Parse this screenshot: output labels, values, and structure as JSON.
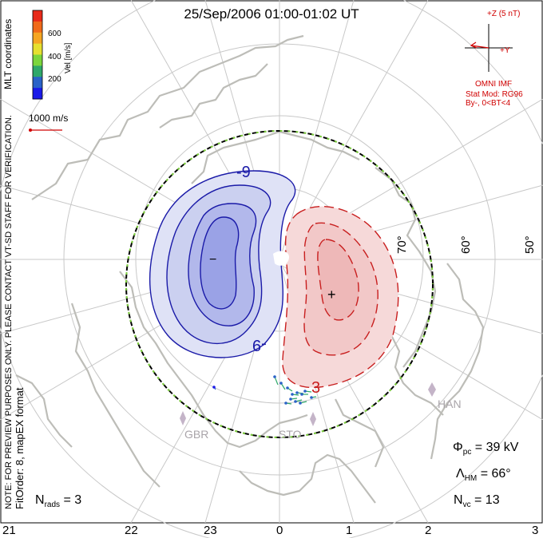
{
  "title": "25/Sep/2006 01:00-01:02 UT",
  "left_margin": {
    "coords": "MLT coordinates",
    "preview_note": "NOTE: FOR PREVIEW PURPOSES ONLY. PLEASE CONTACT VT-SD STAFF FOR VERIFICATION.",
    "fit_info": "FitOrder: 8,  mapEX format"
  },
  "colorbar": {
    "label": "Vel [m/s]",
    "ticks": [
      "600",
      "400",
      "200"
    ],
    "colors": [
      "#e82a1a",
      "#f06a1a",
      "#f5a623",
      "#e6e030",
      "#7cd63c",
      "#2fa86a",
      "#2a62c8",
      "#1a1ae8"
    ]
  },
  "reference_vector": {
    "label": "1000 m/s",
    "color": "#d00000"
  },
  "imf": {
    "z_label": "+Z (5 nT)",
    "y_label": "+Y",
    "source": "OMNI IMF",
    "stat_model": "Stat Mod: RG96",
    "conditions": "By-, 0<BT<4",
    "color": "#d00000"
  },
  "latitude_labels": [
    "70°",
    "60°",
    "50°"
  ],
  "stations": [
    "GBR",
    "STO",
    "HAN"
  ],
  "contours": {
    "negative_label": "-9",
    "positive_label": "3",
    "min_marker": "−",
    "max_marker": "+",
    "negative_color": "#1a1aa8",
    "negative_fill": "#c8cdf0",
    "positive_color": "#c81e1e",
    "positive_fill": "#f6d2d2"
  },
  "stats": {
    "nrads_label": "N",
    "nrads_sub": "rads",
    "nrads_value": " = 3",
    "phi_label": "Φ",
    "phi_sub": "pc",
    "phi_value": " = 39 kV",
    "lambda_label": "Λ",
    "lambda_sub": "HM",
    "lambda_value": " = 66°",
    "nvc_label": "N",
    "nvc_sub": "vc",
    "nvc_value": " = 13"
  },
  "mlt_axis": [
    "21",
    "22",
    "23",
    "0",
    "1",
    "2",
    "3"
  ],
  "colors": {
    "grid": "#c8c8c8",
    "coast": "#bdbdb8",
    "boundary_dark": "#000000",
    "boundary_light": "#7ccd3c",
    "station_marker": "#c4b4c8"
  }
}
